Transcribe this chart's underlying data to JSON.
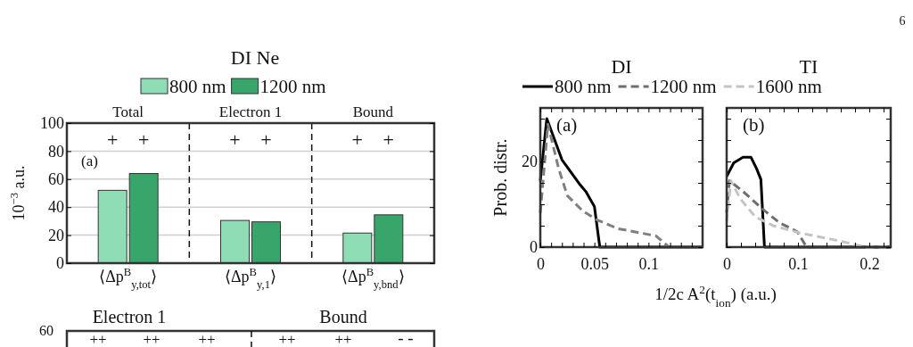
{
  "chart_data": [
    {
      "type": "bar",
      "title": "DI Ne",
      "ylabel": "10$^{−3}$ a.u.",
      "categories": [
        "⟨Δp$^{B}$$_{y,tot}$⟩",
        "⟨Δp$^{B}$$_{y,1}$⟩",
        "⟨Δp$^{B}$$_{y,bnd}$⟩"
      ],
      "series": [
        {
          "name": "800 nm",
          "color": "#8fddb5",
          "values": [
            52,
            30.5,
            21.5
          ]
        },
        {
          "name": "1200 nm",
          "color": "#38a56b",
          "values": [
            64,
            29.5,
            34.5
          ]
        }
      ],
      "ylim": [
        0,
        100
      ],
      "yticks": [
        0,
        20,
        40,
        60,
        80,
        100
      ],
      "grid": "y",
      "legend": "top",
      "annotations": [
        "Total",
        "Electron 1",
        "Bound",
        "+",
        "+",
        "+",
        "+",
        "+",
        "+",
        "(a)",
        "6"
      ]
    },
    {
      "type": "line",
      "title": "DI",
      "ylabel": "Prob. distr.",
      "series": [
        {
          "color": "#000000",
          "line_style": "solid",
          "x": [
            0,
            0.006,
            0.02,
            0.036,
            0.042,
            0.05,
            0.055,
            0.15
          ],
          "values": [
            15.5,
            30,
            20.4,
            14.8,
            13,
            9.5,
            0,
            0
          ]
        },
        {
          "color": "#7f7f7f",
          "line_style": "dashed",
          "x": [
            0,
            0.007,
            0.017,
            0.025,
            0.039,
            0.052,
            0.072,
            0.093,
            0.107,
            0.119,
            0.15
          ],
          "values": [
            8,
            28.7,
            18.3,
            12,
            8.5,
            6.4,
            4.3,
            3.3,
            2.6,
            0,
            0
          ]
        }
      ],
      "xlim": [
        0,
        0.15
      ],
      "xticks": [
        0,
        {
          "value": 0.01,
          "label": null
        },
        {
          "value": 0.02,
          "label": null
        },
        {
          "value": 0.03,
          "label": null
        },
        {
          "value": 0.04,
          "label": null
        },
        0.05,
        {
          "value": 0.06,
          "label": null
        },
        {
          "value": 0.07,
          "label": null
        },
        {
          "value": 0.08,
          "label": null
        },
        {
          "value": 0.09,
          "label": null
        },
        0.1,
        {
          "value": 0.11,
          "label": null
        },
        {
          "value": 0.12,
          "label": null
        },
        {
          "value": 0.13,
          "label": null
        },
        {
          "value": 0.14,
          "label": null
        }
      ],
      "ylim": [
        0,
        32.5
      ],
      "yticks": [
        0,
        {
          "value": 5,
          "label": null
        },
        {
          "value": 10,
          "label": null
        },
        {
          "value": 15,
          "label": null
        },
        20,
        {
          "value": 25,
          "label": null
        },
        {
          "value": 30,
          "label": null
        }
      ],
      "annotations": [
        "(a)"
      ]
    },
    {
      "type": "line",
      "title": "TI",
      "xlabel": "1/2c A$^{2}$(t$_{ion}$) (a.u.)",
      "legend": "top",
      "tick_labels": "x",
      "series": [
        {
          "name": "800 nm",
          "color": "#000000",
          "line_style": "solid",
          "x": [
            0,
            0.01,
            0.023,
            0.034,
            0.042,
            0.048,
            0.053,
            0.23
          ],
          "values": [
            16.5,
            19.7,
            21,
            21,
            18.3,
            15.8,
            0,
            0
          ]
        },
        {
          "name": "1200 nm",
          "color": "#6f6f6f",
          "line_style": "dashed",
          "x": [
            0,
            0.004,
            0.025,
            0.053,
            0.074,
            0.099,
            0.112,
            0.23
          ],
          "values": [
            8,
            15.5,
            12.7,
            8.5,
            5.7,
            3.6,
            0,
            0
          ]
        },
        {
          "name": "1600 nm",
          "color": "#c4c4c4",
          "line_style": "dashed",
          "x": [
            0,
            0.006,
            0.019,
            0.04,
            0.065,
            0.103,
            0.145,
            0.183,
            0.196,
            0.23
          ],
          "values": [
            6,
            15.5,
            11.3,
            7.1,
            5,
            3.3,
            1.9,
            0.5,
            0,
            0
          ]
        }
      ],
      "xlim": [
        0,
        0.23
      ],
      "xticks": [
        0,
        {
          "value": 0.02,
          "label": null
        },
        {
          "value": 0.04,
          "label": null
        },
        {
          "value": 0.06,
          "label": null
        },
        {
          "value": 0.08,
          "label": null
        },
        0.1,
        {
          "value": 0.12,
          "label": null
        },
        {
          "value": 0.14,
          "label": null
        },
        {
          "value": 0.16,
          "label": null
        },
        {
          "value": 0.18,
          "label": null
        },
        0.2,
        {
          "value": 0.22,
          "label": null
        }
      ],
      "ylim": [
        0,
        32.5
      ],
      "yticks": [
        {
          "value": 0,
          "label": null
        },
        {
          "value": 5,
          "label": null
        },
        {
          "value": 10,
          "label": null
        },
        {
          "value": 15,
          "label": null
        },
        {
          "value": 20,
          "label": null
        },
        {
          "value": 25,
          "label": null
        },
        {
          "value": 30,
          "label": null
        }
      ],
      "annotations": [
        "(b)"
      ]
    },
    {
      "type": "other",
      "annotations": [
        "Electron 1",
        "Bound",
        "60",
        "++",
        "++",
        "++",
        "++",
        "++",
        "- -"
      ]
    }
  ]
}
